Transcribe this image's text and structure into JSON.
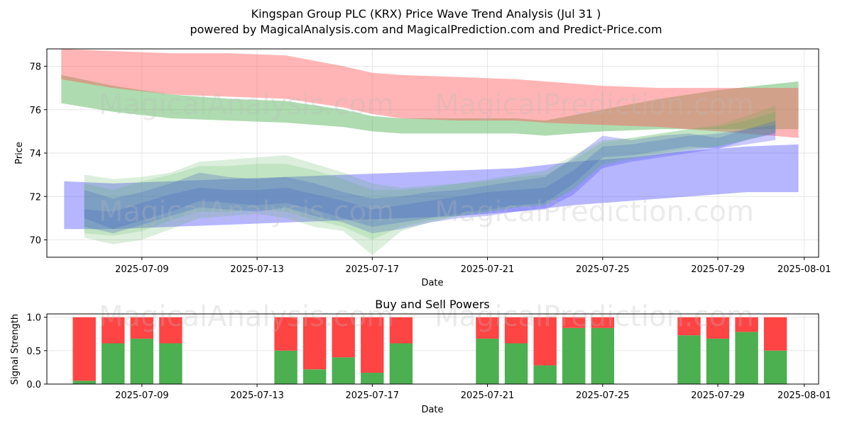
{
  "title": {
    "line1": "Kingspan Group PLC (KRX) Price Wave Trend Analysis (Jul 31 )",
    "line2": "powered by MagicalAnalysis.com and MagicalPrediction.com and Predict-Price.com"
  },
  "watermarks": {
    "left": "MagicalAnalysis.com",
    "right": "MagicalPrediction.com"
  },
  "colors": {
    "red_band": "#ff5c5c",
    "green_band": "#4caf50",
    "blue_band": "#5050ff",
    "buy": "#4caf50",
    "sell": "#ff4444",
    "grid": "#e6e6e6"
  },
  "chart_data": [
    {
      "type": "area",
      "title": "",
      "xlabel": "Date",
      "ylabel": "Price",
      "ylim": [
        69.2,
        78.8
      ],
      "xlim": [
        "2025-07-05.7",
        "2025-08-01.5"
      ],
      "x_ticks": [
        "2025-07-09",
        "2025-07-13",
        "2025-07-17",
        "2025-07-21",
        "2025-07-25",
        "2025-07-29",
        "2025-08-01"
      ],
      "x_tick_days": [
        9,
        13,
        17,
        21,
        25,
        29,
        32
      ],
      "y_ticks": [
        70,
        72,
        74,
        76,
        78
      ],
      "grid": true,
      "series": [
        {
          "name": "green-band",
          "color": "#4caf50",
          "opacity": 0.45,
          "x_days": [
            6.2,
            8,
            10,
            12,
            14,
            16,
            17,
            18,
            20,
            22,
            23,
            25,
            27,
            29,
            31.8
          ],
          "upper": [
            77.6,
            77.1,
            76.7,
            76.5,
            76.4,
            76.0,
            75.7,
            75.6,
            75.6,
            75.6,
            75.5,
            76.0,
            76.5,
            76.9,
            77.3
          ],
          "lower": [
            76.3,
            75.9,
            75.6,
            75.5,
            75.4,
            75.2,
            75.0,
            74.9,
            74.9,
            74.9,
            74.8,
            75.0,
            75.1,
            75.1,
            75.1
          ]
        },
        {
          "name": "red-band",
          "color": "#ff5c5c",
          "opacity": 0.45,
          "x_days": [
            6.2,
            8,
            10,
            12,
            14,
            16,
            17,
            18,
            20,
            22,
            23,
            25,
            27,
            29,
            31.8
          ],
          "upper": [
            78.8,
            78.7,
            78.6,
            78.6,
            78.5,
            78.0,
            77.7,
            77.6,
            77.5,
            77.4,
            77.3,
            77.1,
            77.0,
            77.0,
            77.0
          ],
          "lower": [
            77.4,
            77.0,
            76.7,
            76.6,
            76.5,
            76.1,
            75.8,
            75.6,
            75.5,
            75.5,
            75.4,
            75.3,
            75.2,
            75.0,
            74.7
          ]
        },
        {
          "name": "blue-band",
          "color": "#5050ff",
          "opacity": 0.42,
          "x_days": [
            6.3,
            8,
            10,
            12,
            14,
            16,
            18,
            20,
            22,
            24,
            26,
            28,
            30,
            31.8
          ],
          "upper": [
            72.7,
            72.6,
            72.7,
            72.8,
            72.9,
            73.0,
            73.1,
            73.2,
            73.3,
            73.6,
            73.8,
            74.1,
            74.3,
            74.4
          ],
          "lower": [
            70.5,
            70.5,
            70.6,
            70.7,
            70.8,
            70.9,
            71.0,
            71.1,
            71.3,
            71.6,
            71.8,
            72.0,
            72.2,
            72.2
          ]
        },
        {
          "name": "wave-blue-1",
          "color": "#4b4bff",
          "opacity": 0.3,
          "x_days": [
            7,
            8,
            9,
            10,
            11,
            12,
            13,
            14,
            15,
            16,
            17,
            18,
            19,
            20,
            21,
            22,
            23,
            24,
            25,
            26,
            27,
            28,
            29,
            30,
            31
          ],
          "upper": [
            72.3,
            71.9,
            72.2,
            72.6,
            73.1,
            72.9,
            72.8,
            72.9,
            72.6,
            72.2,
            71.9,
            72.0,
            72.2,
            72.3,
            72.5,
            72.7,
            72.9,
            73.8,
            74.8,
            74.6,
            74.8,
            74.9,
            74.7,
            75.1,
            75.5
          ],
          "lower": [
            71.0,
            70.5,
            70.9,
            71.3,
            71.8,
            71.7,
            71.6,
            71.7,
            71.4,
            71.0,
            70.6,
            70.8,
            71.0,
            71.2,
            71.4,
            71.6,
            71.7,
            72.6,
            73.8,
            73.9,
            74.1,
            74.3,
            74.2,
            74.6,
            74.9
          ]
        },
        {
          "name": "wave-blue-2",
          "color": "#4b4bff",
          "opacity": 0.3,
          "x_days": [
            7,
            8,
            9,
            10,
            11,
            12,
            13,
            14,
            15,
            16,
            17,
            18,
            19,
            20,
            21,
            22,
            23,
            24,
            25,
            26,
            27,
            28,
            29,
            30,
            31
          ],
          "upper": [
            71.4,
            71.3,
            71.7,
            72.1,
            72.4,
            72.3,
            72.3,
            72.4,
            72.1,
            71.8,
            71.4,
            71.6,
            71.8,
            72.0,
            72.2,
            72.3,
            72.4,
            73.2,
            74.3,
            74.4,
            74.6,
            74.8,
            74.9,
            75.1,
            75.3
          ],
          "lower": [
            70.6,
            70.3,
            70.7,
            71.1,
            71.5,
            71.4,
            71.3,
            71.5,
            71.1,
            70.8,
            70.3,
            70.5,
            70.8,
            71.0,
            71.1,
            71.3,
            71.4,
            72.1,
            73.3,
            73.6,
            73.8,
            74.0,
            74.2,
            74.4,
            74.6
          ]
        },
        {
          "name": "wave-green-1",
          "color": "#4caf50",
          "opacity": 0.2,
          "x_days": [
            7,
            8,
            9,
            10,
            11,
            12,
            13,
            14,
            15,
            16,
            17,
            18,
            19,
            20,
            21,
            22,
            23,
            24,
            25,
            26,
            27,
            28,
            29,
            30,
            31
          ],
          "upper": [
            73.0,
            72.8,
            72.9,
            73.1,
            73.6,
            73.7,
            73.8,
            73.9,
            73.5,
            73.1,
            72.6,
            72.4,
            72.5,
            72.6,
            72.8,
            73.0,
            73.2,
            73.9,
            74.6,
            74.7,
            74.9,
            75.1,
            75.2,
            75.5,
            75.9
          ],
          "lower": [
            70.1,
            69.8,
            70.0,
            70.5,
            71.0,
            71.1,
            71.2,
            71.0,
            70.6,
            70.4,
            69.3,
            70.4,
            70.8,
            71.1,
            71.3,
            71.5,
            71.6,
            72.4,
            73.5,
            73.8,
            74.0,
            74.2,
            74.3,
            74.6,
            74.9
          ]
        },
        {
          "name": "wave-green-2",
          "color": "#4caf50",
          "opacity": 0.18,
          "x_days": [
            7,
            8,
            9,
            10,
            11,
            12,
            13,
            14,
            15,
            16,
            17,
            18,
            19,
            20,
            21,
            22,
            23,
            24,
            25,
            26,
            27,
            28,
            29,
            30,
            31
          ],
          "upper": [
            72.6,
            72.3,
            72.7,
            73.0,
            73.4,
            73.4,
            73.5,
            73.5,
            73.2,
            72.8,
            72.3,
            72.3,
            72.4,
            72.6,
            72.7,
            72.9,
            73.0,
            73.7,
            74.5,
            74.7,
            74.9,
            75.1,
            75.3,
            75.7,
            76.2
          ],
          "lower": [
            70.3,
            70.2,
            70.4,
            70.9,
            71.3,
            71.3,
            71.4,
            71.3,
            70.9,
            70.6,
            70.0,
            70.6,
            70.9,
            71.1,
            71.3,
            71.5,
            71.6,
            72.3,
            73.4,
            73.7,
            73.9,
            74.1,
            74.3,
            74.6,
            75.0
          ]
        }
      ]
    },
    {
      "type": "bar",
      "title": "Buy and Sell Powers",
      "xlabel": "Date",
      "ylabel": "Signal Strength",
      "ylim": [
        0,
        1.05
      ],
      "y_ticks": [
        "0.0",
        "0.5",
        "1.0"
      ],
      "x_ticks": [
        "2025-07-09",
        "2025-07-13",
        "2025-07-17",
        "2025-07-21",
        "2025-07-25",
        "2025-07-29",
        "2025-08-01"
      ],
      "grid": true,
      "series": [
        {
          "name": "Buy",
          "color": "#4caf50",
          "x_days": [
            7,
            8,
            9,
            10,
            14,
            15,
            16,
            17,
            18,
            21,
            22,
            23,
            24,
            25,
            28,
            29,
            30,
            31
          ],
          "values": [
            0.05,
            0.61,
            0.68,
            0.61,
            0.5,
            0.22,
            0.4,
            0.17,
            0.61,
            0.68,
            0.61,
            0.28,
            0.84,
            0.84,
            0.73,
            0.68,
            0.78,
            0.5
          ]
        },
        {
          "name": "Sell",
          "color": "#ff4444",
          "x_days": [
            7,
            8,
            9,
            10,
            14,
            15,
            16,
            17,
            18,
            21,
            22,
            23,
            24,
            25,
            28,
            29,
            30,
            31
          ],
          "values": [
            0.95,
            0.39,
            0.32,
            0.39,
            0.5,
            0.78,
            0.6,
            0.83,
            0.39,
            0.32,
            0.39,
            0.72,
            0.16,
            0.16,
            0.27,
            0.32,
            0.22,
            0.5
          ]
        }
      ]
    }
  ]
}
